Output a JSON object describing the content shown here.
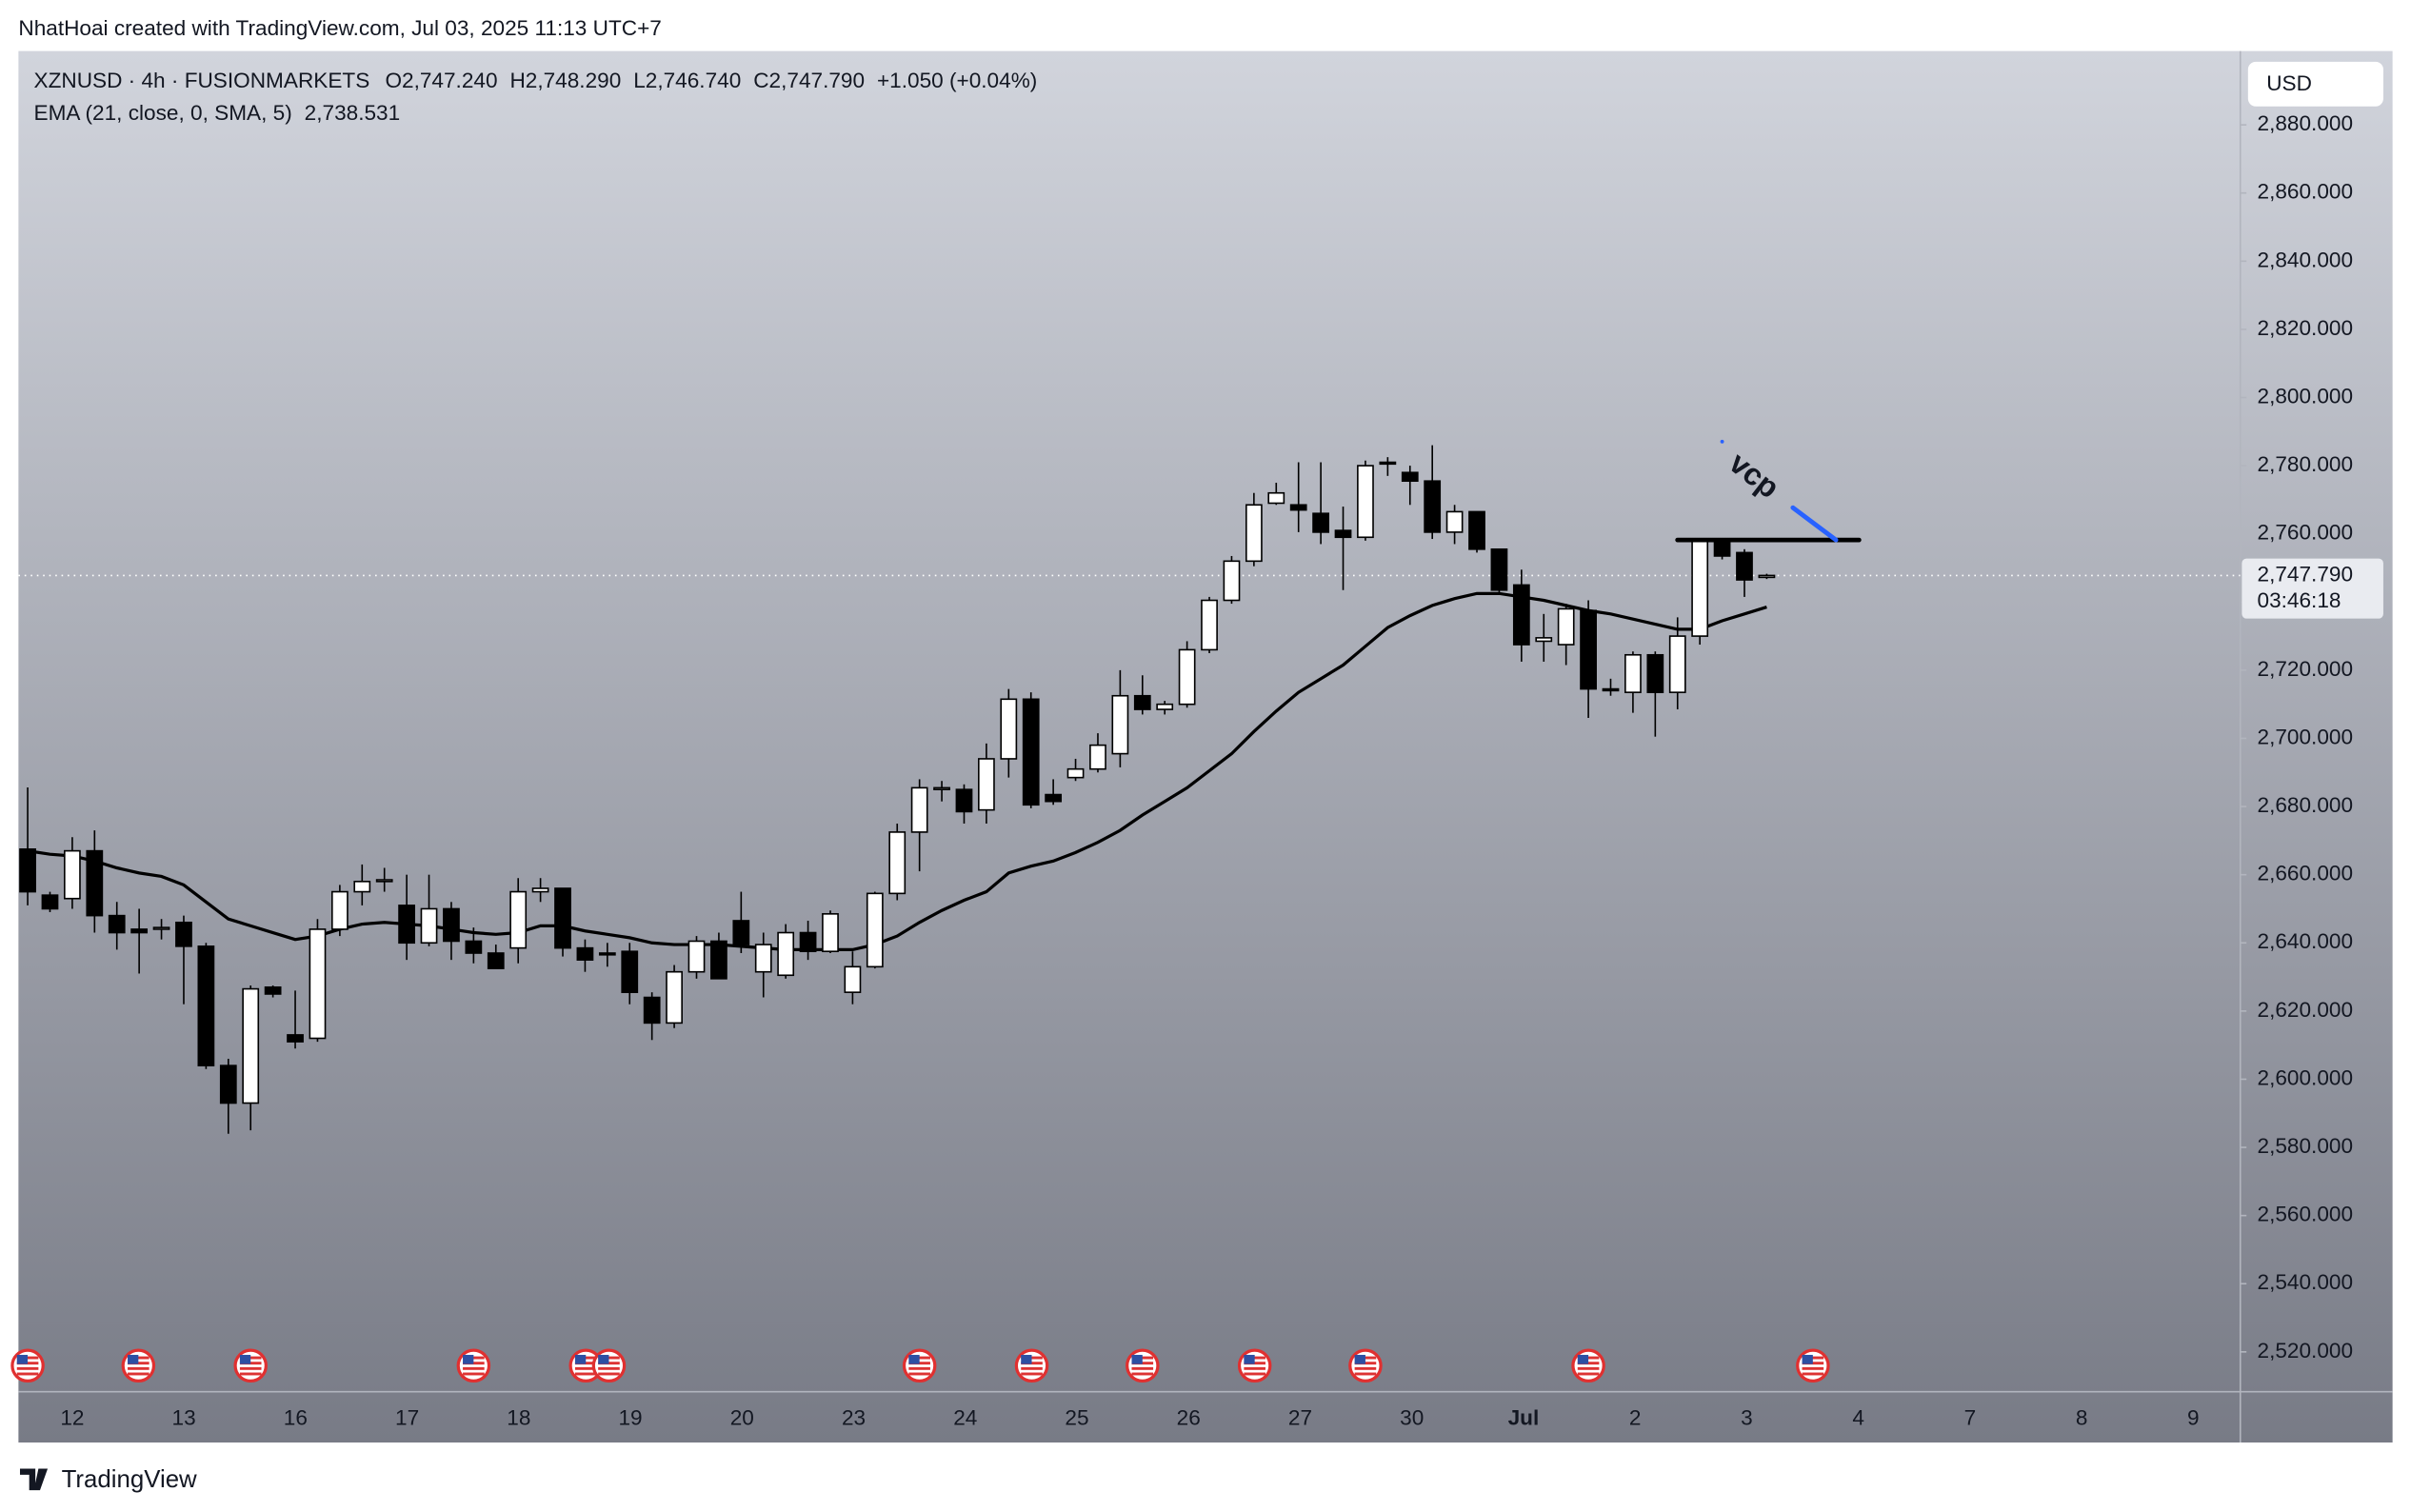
{
  "header": {
    "credit": "NhatHoai created with TradingView.com, Jul 03, 2025 11:13 UTC+7"
  },
  "footer": {
    "logo": "TradingView"
  },
  "chart_data": {
    "type": "candlestick",
    "symbol": "XZNUSD · 4h · FUSIONMARKETS",
    "legend_values": [
      "O2,747.240",
      "H2,748.290",
      "L2,746.740",
      "C2,747.790",
      "+1.050 (+0.04%)"
    ],
    "currency": "USD",
    "last_price_label": "2,747.790",
    "countdown": "03:46:18",
    "annotation": "vcp",
    "day_labels": [
      "12",
      "13",
      "16",
      "17",
      "18",
      "19",
      "20",
      "23",
      "24",
      "25",
      "26",
      "27",
      "30",
      "Jul",
      "2",
      "3",
      "4",
      "7",
      "8",
      "9"
    ],
    "candles": {
      "open": [
        2667.5,
        2654,
        2653,
        2667,
        2648,
        2644,
        2644,
        2646,
        2639,
        2604,
        2593,
        2627,
        2613,
        2612,
        2644,
        2655,
        2658,
        2651,
        2640,
        2650,
        2640.5,
        2637,
        2638.5,
        2655,
        2656,
        2638.5,
        2637,
        2637.5,
        2624,
        2616.5,
        2631.5,
        2640.5,
        2646.5,
        2631.5,
        2630.5,
        2643,
        2637.5,
        2625.5,
        2633,
        2654.5,
        2672.5,
        2685,
        2685,
        2679,
        2694,
        2711.5,
        2683.5,
        2688.5,
        2691,
        2695.5,
        2712.5,
        2708.5,
        2710,
        2726,
        2740.5,
        2752,
        2769,
        2768.5,
        2766,
        2761,
        2759,
        2781,
        2778,
        2775.5,
        2760.5,
        2766.5,
        2755.5,
        2745,
        2728.5,
        2727.5,
        2737.5,
        2714.5,
        2713.5,
        2724.5,
        2713.5,
        2730,
        2758.5,
        2754.5,
        2747.24
      ],
      "high": [
        2685.6,
        2655,
        2671,
        2673,
        2652,
        2650,
        2647,
        2648,
        2640,
        2606,
        2627.5,
        2627.5,
        2626,
        2647,
        2657,
        2663,
        2662,
        2660,
        2660,
        2652,
        2644.5,
        2639.5,
        2659,
        2659,
        2656,
        2641,
        2640,
        2640,
        2625.5,
        2633.5,
        2642,
        2643,
        2655,
        2643,
        2645.5,
        2646.5,
        2649.5,
        2637.5,
        2655,
        2675,
        2688,
        2687.5,
        2686.5,
        2698.5,
        2714.5,
        2713.5,
        2688,
        2694,
        2701.5,
        2720,
        2718.5,
        2711,
        2728.5,
        2741.5,
        2753.5,
        2772,
        2775,
        2781,
        2781,
        2768,
        2781.5,
        2782.5,
        2780,
        2786,
        2768.5,
        2766.5,
        2755.5,
        2749.5,
        2736.5,
        2739.5,
        2740.5,
        2717.5,
        2725.5,
        2725.5,
        2735.5,
        2758.5,
        2758.5,
        2755.5,
        2748.29
      ],
      "low": [
        2651,
        2649,
        2650,
        2643,
        2638,
        2631,
        2641,
        2622,
        2603,
        2584,
        2585,
        2624,
        2609,
        2611,
        2642,
        2651,
        2655,
        2635,
        2639,
        2635,
        2634,
        2632.5,
        2634,
        2652,
        2636,
        2631.5,
        2633,
        2622,
        2611.5,
        2615,
        2629.5,
        2629.5,
        2637,
        2624,
        2629.5,
        2635,
        2637,
        2622,
        2632.5,
        2652.5,
        2661,
        2681.5,
        2675,
        2675,
        2688.5,
        2679.5,
        2680.5,
        2687.5,
        2690,
        2691.5,
        2707,
        2707,
        2709,
        2725,
        2739.5,
        2750.5,
        2768.5,
        2760.5,
        2757,
        2743.5,
        2758,
        2777,
        2768.5,
        2758.5,
        2757,
        2754.5,
        2742.5,
        2722.5,
        2722.5,
        2721.5,
        2706,
        2712.5,
        2707.5,
        2700.5,
        2708.5,
        2727.5,
        2752.5,
        2741.5,
        2746.74
      ],
      "close": [
        2655,
        2650,
        2667,
        2648,
        2643,
        2643,
        2644.5,
        2639,
        2604,
        2593,
        2626.5,
        2625,
        2611,
        2644,
        2655,
        2658,
        2658.5,
        2640,
        2650,
        2640.5,
        2637,
        2632.5,
        2655,
        2656,
        2638.5,
        2635,
        2636.5,
        2625.5,
        2616.5,
        2631.5,
        2640.5,
        2629.5,
        2639.5,
        2639.5,
        2643,
        2637.5,
        2648.5,
        2633,
        2654.5,
        2672.5,
        2685.5,
        2685.5,
        2678.5,
        2694,
        2711.5,
        2680.5,
        2681.5,
        2691,
        2698,
        2712.5,
        2708.5,
        2710,
        2726,
        2740.5,
        2752,
        2768.5,
        2772,
        2767,
        2760.5,
        2759,
        2780,
        2780.5,
        2775.5,
        2760.5,
        2766.5,
        2755.5,
        2743.5,
        2727.5,
        2729.5,
        2738,
        2714.5,
        2714,
        2724.5,
        2713.5,
        2730,
        2758,
        2753.5,
        2746.5,
        2747.79
      ]
    },
    "ema": {
      "name": "EMA (21, close, 0, SMA, 5)",
      "value_label": "2,738.531",
      "color": "#000000",
      "values": [
        2667,
        2666,
        2665.5,
        2664,
        2662,
        2660.5,
        2659.5,
        2657,
        2652,
        2647,
        2645,
        2643,
        2641,
        2642,
        2644,
        2645.5,
        2646,
        2645.5,
        2645,
        2644,
        2643,
        2642.5,
        2643,
        2645,
        2645,
        2643.5,
        2642.5,
        2641.5,
        2640,
        2639.5,
        2639.5,
        2639.5,
        2639,
        2638.5,
        2638,
        2638,
        2638,
        2638,
        2639.5,
        2642,
        2646,
        2649.5,
        2652.5,
        2655,
        2660.5,
        2662.5,
        2664,
        2666.5,
        2669.5,
        2673,
        2677.5,
        2681.5,
        2685.5,
        2690.5,
        2695.5,
        2702,
        2708,
        2713.5,
        2717.5,
        2721.5,
        2727,
        2732.5,
        2736,
        2739,
        2741,
        2742.5,
        2742.5,
        2741.5,
        2740.5,
        2739,
        2737.5,
        2736.5,
        2735,
        2733.5,
        2732,
        2732,
        2734.5,
        2736.5,
        2738.531
      ]
    },
    "up_color": "#ffffff",
    "down_color": "#000000",
    "ylim": [
      2508.3,
      2901.65
    ],
    "yticks": [
      {
        "value": 2520,
        "label": "2,520.000"
      },
      {
        "value": 2540,
        "label": "2,540.000"
      },
      {
        "value": 2560,
        "label": "2,560.000"
      },
      {
        "value": 2580,
        "label": "2,580.000"
      },
      {
        "value": 2600,
        "label": "2,600.000"
      },
      {
        "value": 2620,
        "label": "2,620.000"
      },
      {
        "value": 2640,
        "label": "2,640.000"
      },
      {
        "value": 2660,
        "label": "2,660.000"
      },
      {
        "value": 2680,
        "label": "2,680.000"
      },
      {
        "value": 2700,
        "label": "2,700.000"
      },
      {
        "value": 2720,
        "label": "2,720.000"
      },
      {
        "value": 2740,
        "label": "2,740.000"
      },
      {
        "value": 2760,
        "label": "2,760.000"
      },
      {
        "value": 2780,
        "label": "2,780.000"
      },
      {
        "value": 2800,
        "label": "2,800.000"
      },
      {
        "value": 2820,
        "label": "2,820.000"
      },
      {
        "value": 2840,
        "label": "2,840.000"
      },
      {
        "value": 2860,
        "label": "2,860.000"
      },
      {
        "value": 2880,
        "label": "2,880.000"
      }
    ]
  }
}
